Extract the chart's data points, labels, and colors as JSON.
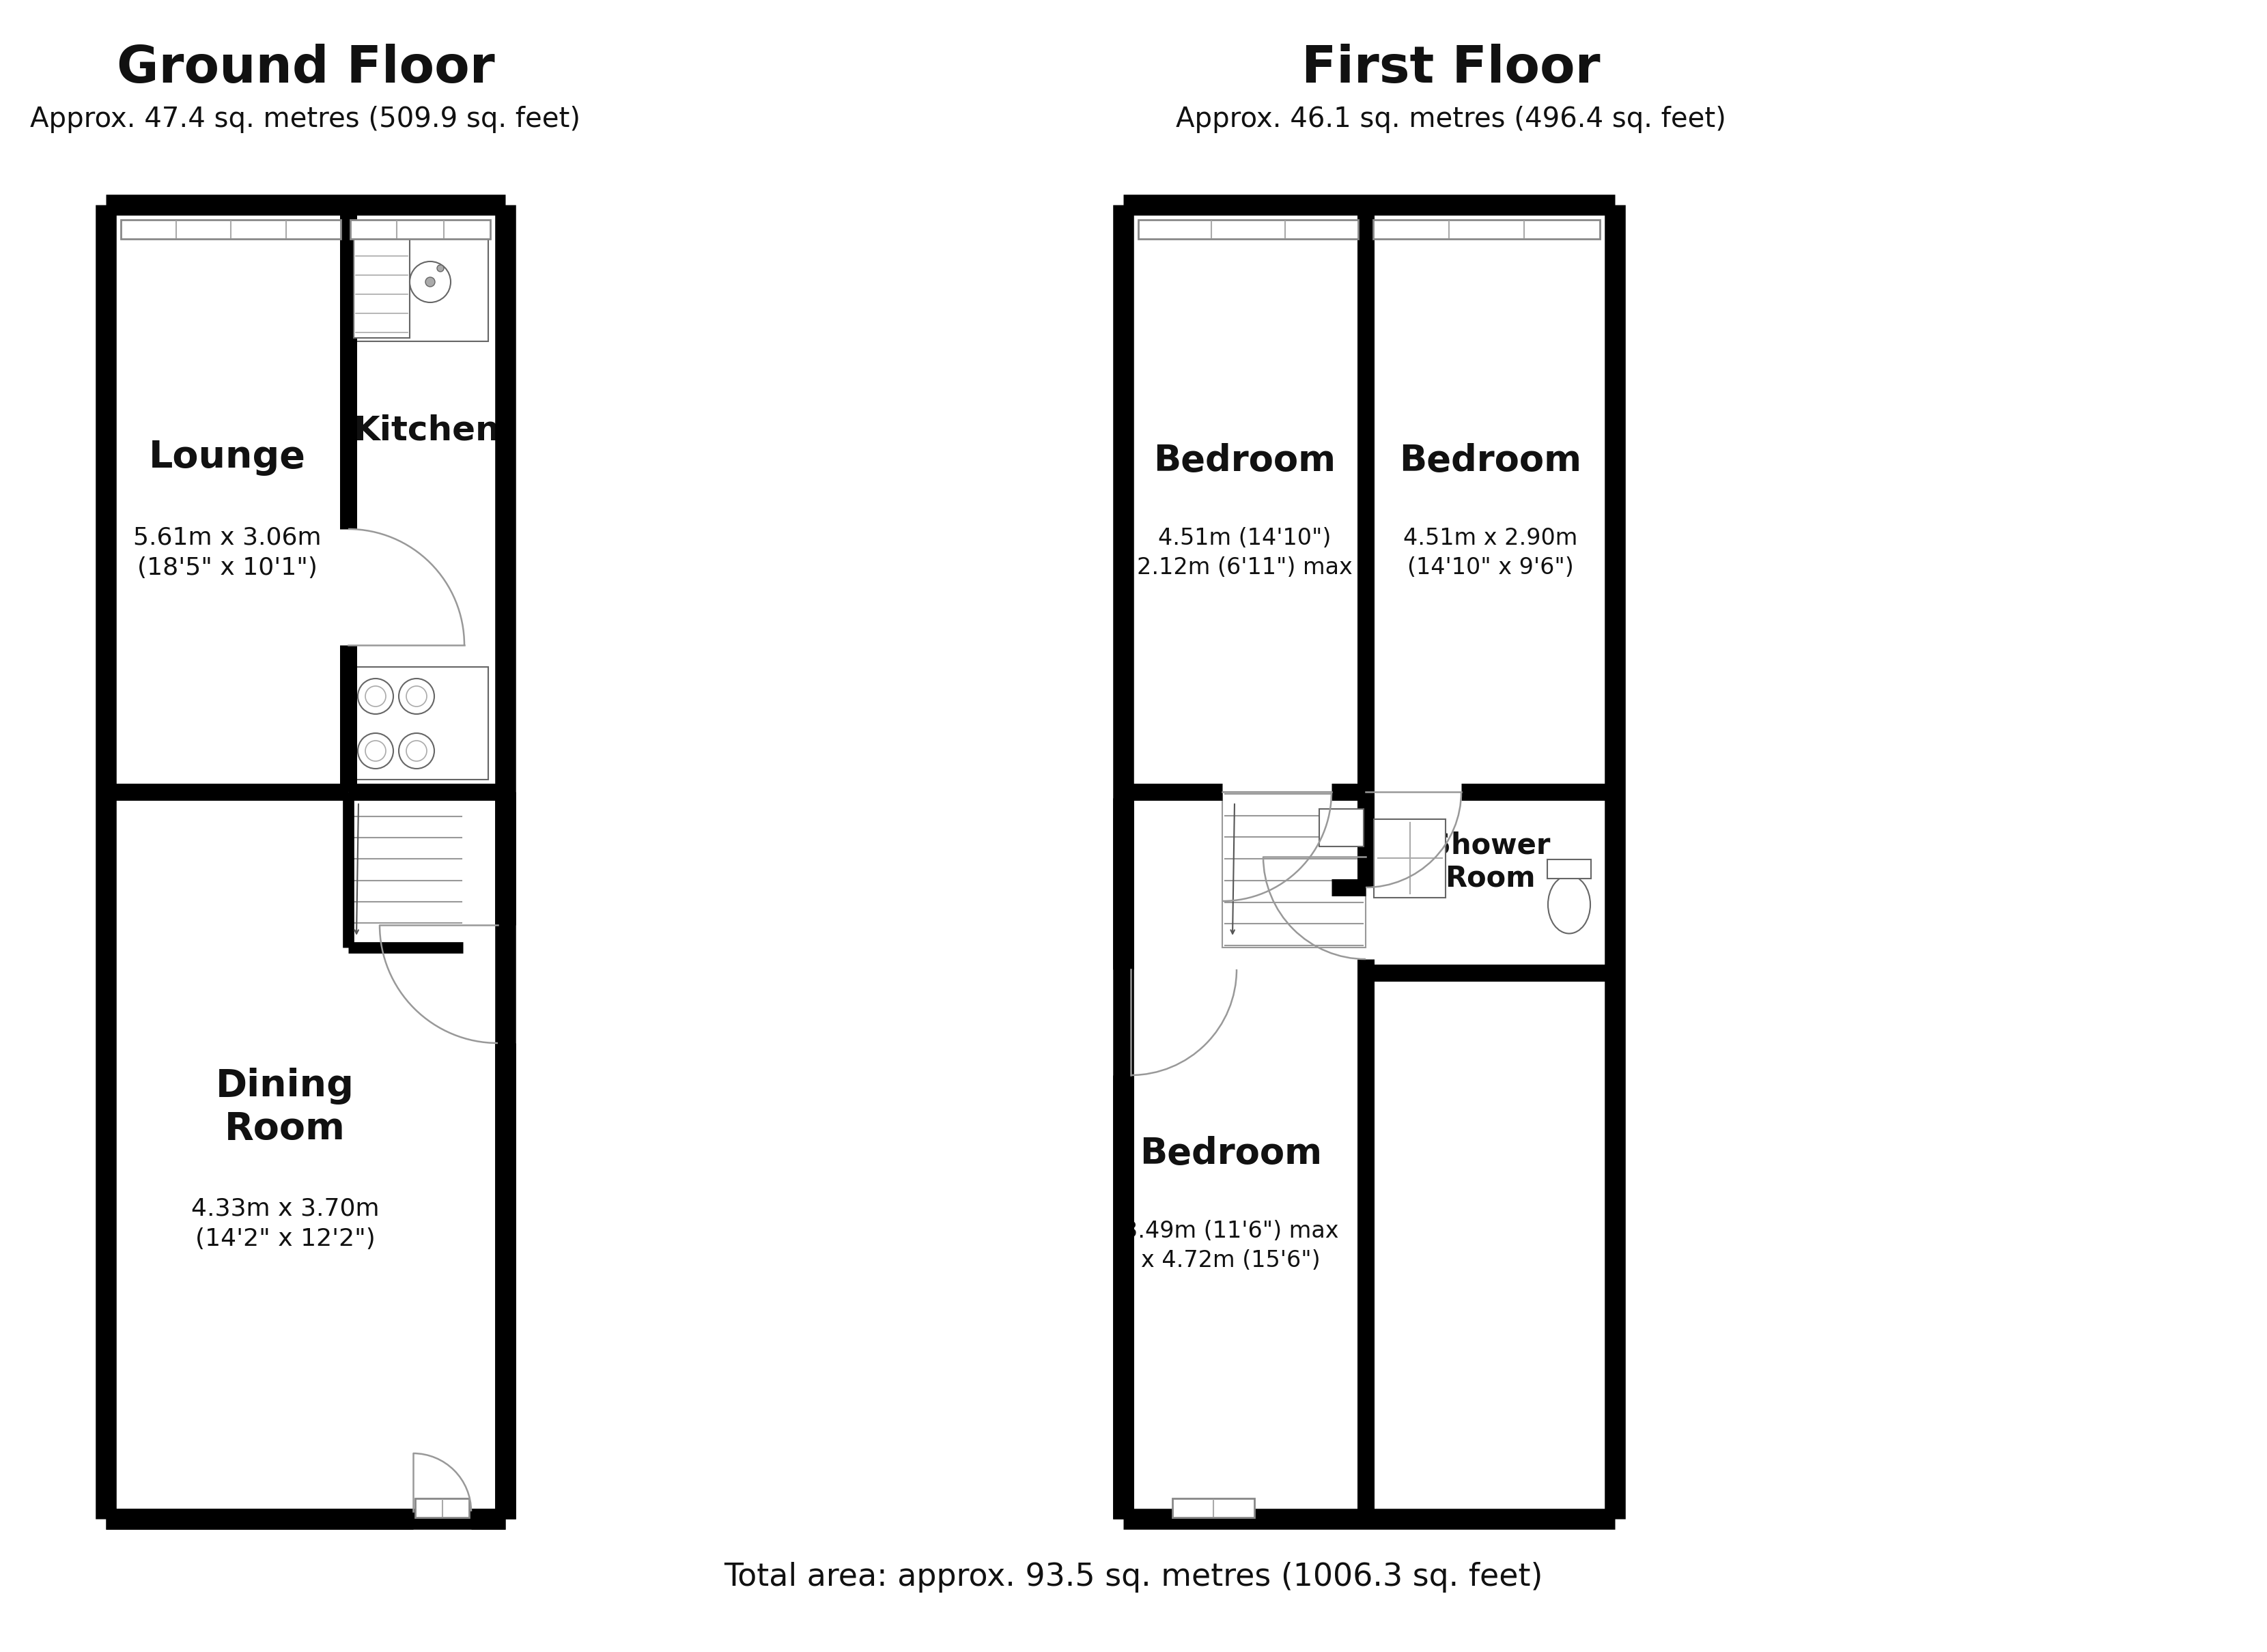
{
  "bg_color": "#ffffff",
  "wall_color": "#000000",
  "door_color": "#999999",
  "fixture_color": "#666666",
  "light_line": "#aaaaaa",
  "ground_floor_title": "Ground Floor",
  "ground_floor_subtitle": "Approx. 47.4 sq. metres (509.9 sq. feet)",
  "first_floor_title": "First Floor",
  "first_floor_subtitle": "Approx. 46.1 sq. metres (496.4 sq. feet)",
  "total_area": "Total area: approx. 93.5 sq. metres (1006.3 sq. feet)",
  "lounge_label": "Lounge",
  "lounge_dims": "5.61m x 3.06m\n(18'5\" x 10'1\")",
  "kitchen_label": "Kitchen",
  "dining_label": "Dining\nRoom",
  "dining_dims": "4.33m x 3.70m\n(14'2\" x 12'2\")",
  "bed1_label": "Bedroom",
  "bed1_dims": "4.51m (14'10\")\n2.12m (6'11\") max",
  "bed2_label": "Bedroom",
  "bed2_dims": "4.51m x 2.90m\n(14'10\" x 9'6\")",
  "bed3_label": "Bedroom",
  "bed3_dims": "3.49m (11'6\") max\nx 4.72m (15'6\")",
  "shower_label": "Shower\nRoom"
}
